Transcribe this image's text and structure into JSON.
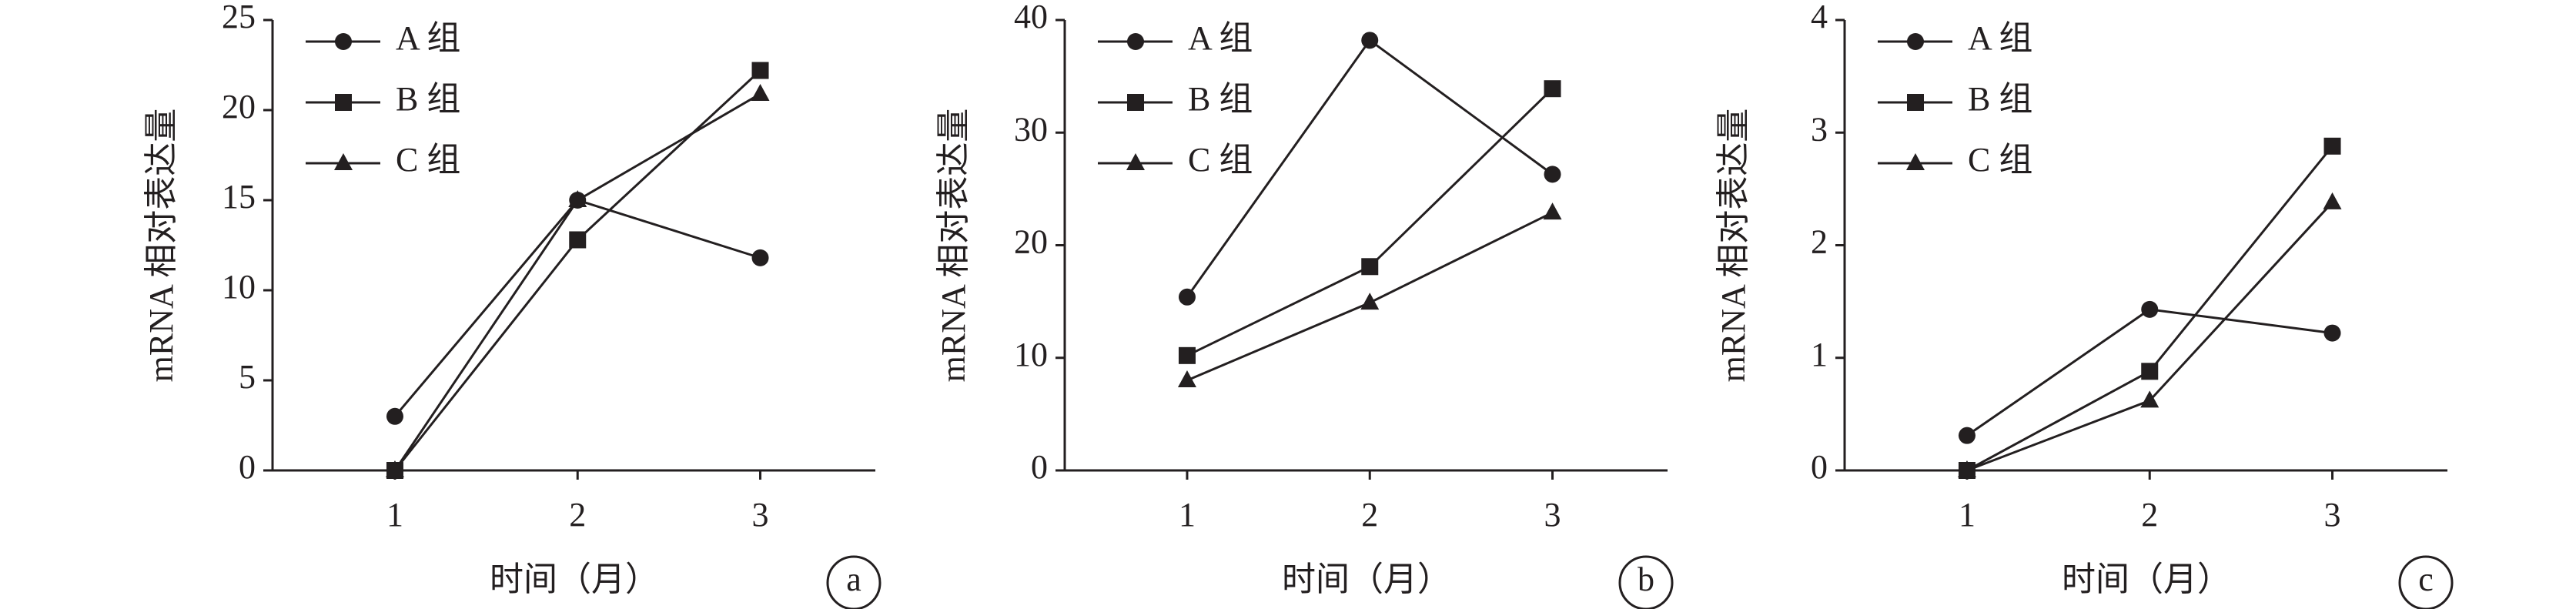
{
  "chart_data": [
    {
      "type": "line",
      "xlabel": "时间（月）",
      "ylabel": "mRNA 相对表达量",
      "panel_label": "a",
      "x": [
        1,
        2,
        3
      ],
      "xlim": [
        0.33,
        3.63
      ],
      "xticks": [
        1,
        2,
        3
      ],
      "ylim": [
        0,
        25
      ],
      "yticks": [
        0,
        5,
        10,
        15,
        20,
        25
      ],
      "legend": "upper-left",
      "series": [
        {
          "name": "A 组",
          "marker": "circle",
          "color": "#231f20",
          "values": [
            3,
            15,
            11.8
          ]
        },
        {
          "name": "B 组",
          "marker": "square",
          "color": "#231f20",
          "values": [
            0,
            12.8,
            22.2
          ]
        },
        {
          "name": "C 组",
          "marker": "triangle",
          "color": "#231f20",
          "values": [
            0,
            15,
            20.9
          ]
        }
      ]
    },
    {
      "type": "line",
      "xlabel": "时间（月）",
      "ylabel": "mRNA 相对表达量",
      "panel_label": "b",
      "x": [
        1,
        2,
        3
      ],
      "xlim": [
        0.33,
        3.63
      ],
      "xticks": [
        1,
        2,
        3
      ],
      "ylim": [
        0,
        40
      ],
      "yticks": [
        0,
        10,
        20,
        30,
        40
      ],
      "legend": "upper-left",
      "series": [
        {
          "name": "A 组",
          "marker": "circle",
          "color": "#231f20",
          "values": [
            15.4,
            38.2,
            26.3
          ]
        },
        {
          "name": "B 组",
          "marker": "square",
          "color": "#231f20",
          "values": [
            10.2,
            18.1,
            33.9
          ]
        },
        {
          "name": "C 组",
          "marker": "triangle",
          "color": "#231f20",
          "values": [
            8,
            14.9,
            22.9
          ]
        }
      ]
    },
    {
      "type": "line",
      "xlabel": "时间（月）",
      "ylabel": "mRNA 相对表达量",
      "panel_label": "c",
      "x": [
        1,
        2,
        3
      ],
      "xlim": [
        0.33,
        3.63
      ],
      "xticks": [
        1,
        2,
        3
      ],
      "ylim": [
        0,
        4
      ],
      "yticks": [
        0,
        1,
        2,
        3,
        4
      ],
      "legend": "upper-left",
      "series": [
        {
          "name": "A 组",
          "marker": "circle",
          "color": "#231f20",
          "values": [
            0.31,
            1.43,
            1.22
          ]
        },
        {
          "name": "B 组",
          "marker": "square",
          "color": "#231f20",
          "values": [
            0,
            0.88,
            2.88
          ]
        },
        {
          "name": "C 组",
          "marker": "triangle",
          "color": "#231f20",
          "values": [
            0,
            0.62,
            2.38
          ]
        }
      ]
    }
  ]
}
